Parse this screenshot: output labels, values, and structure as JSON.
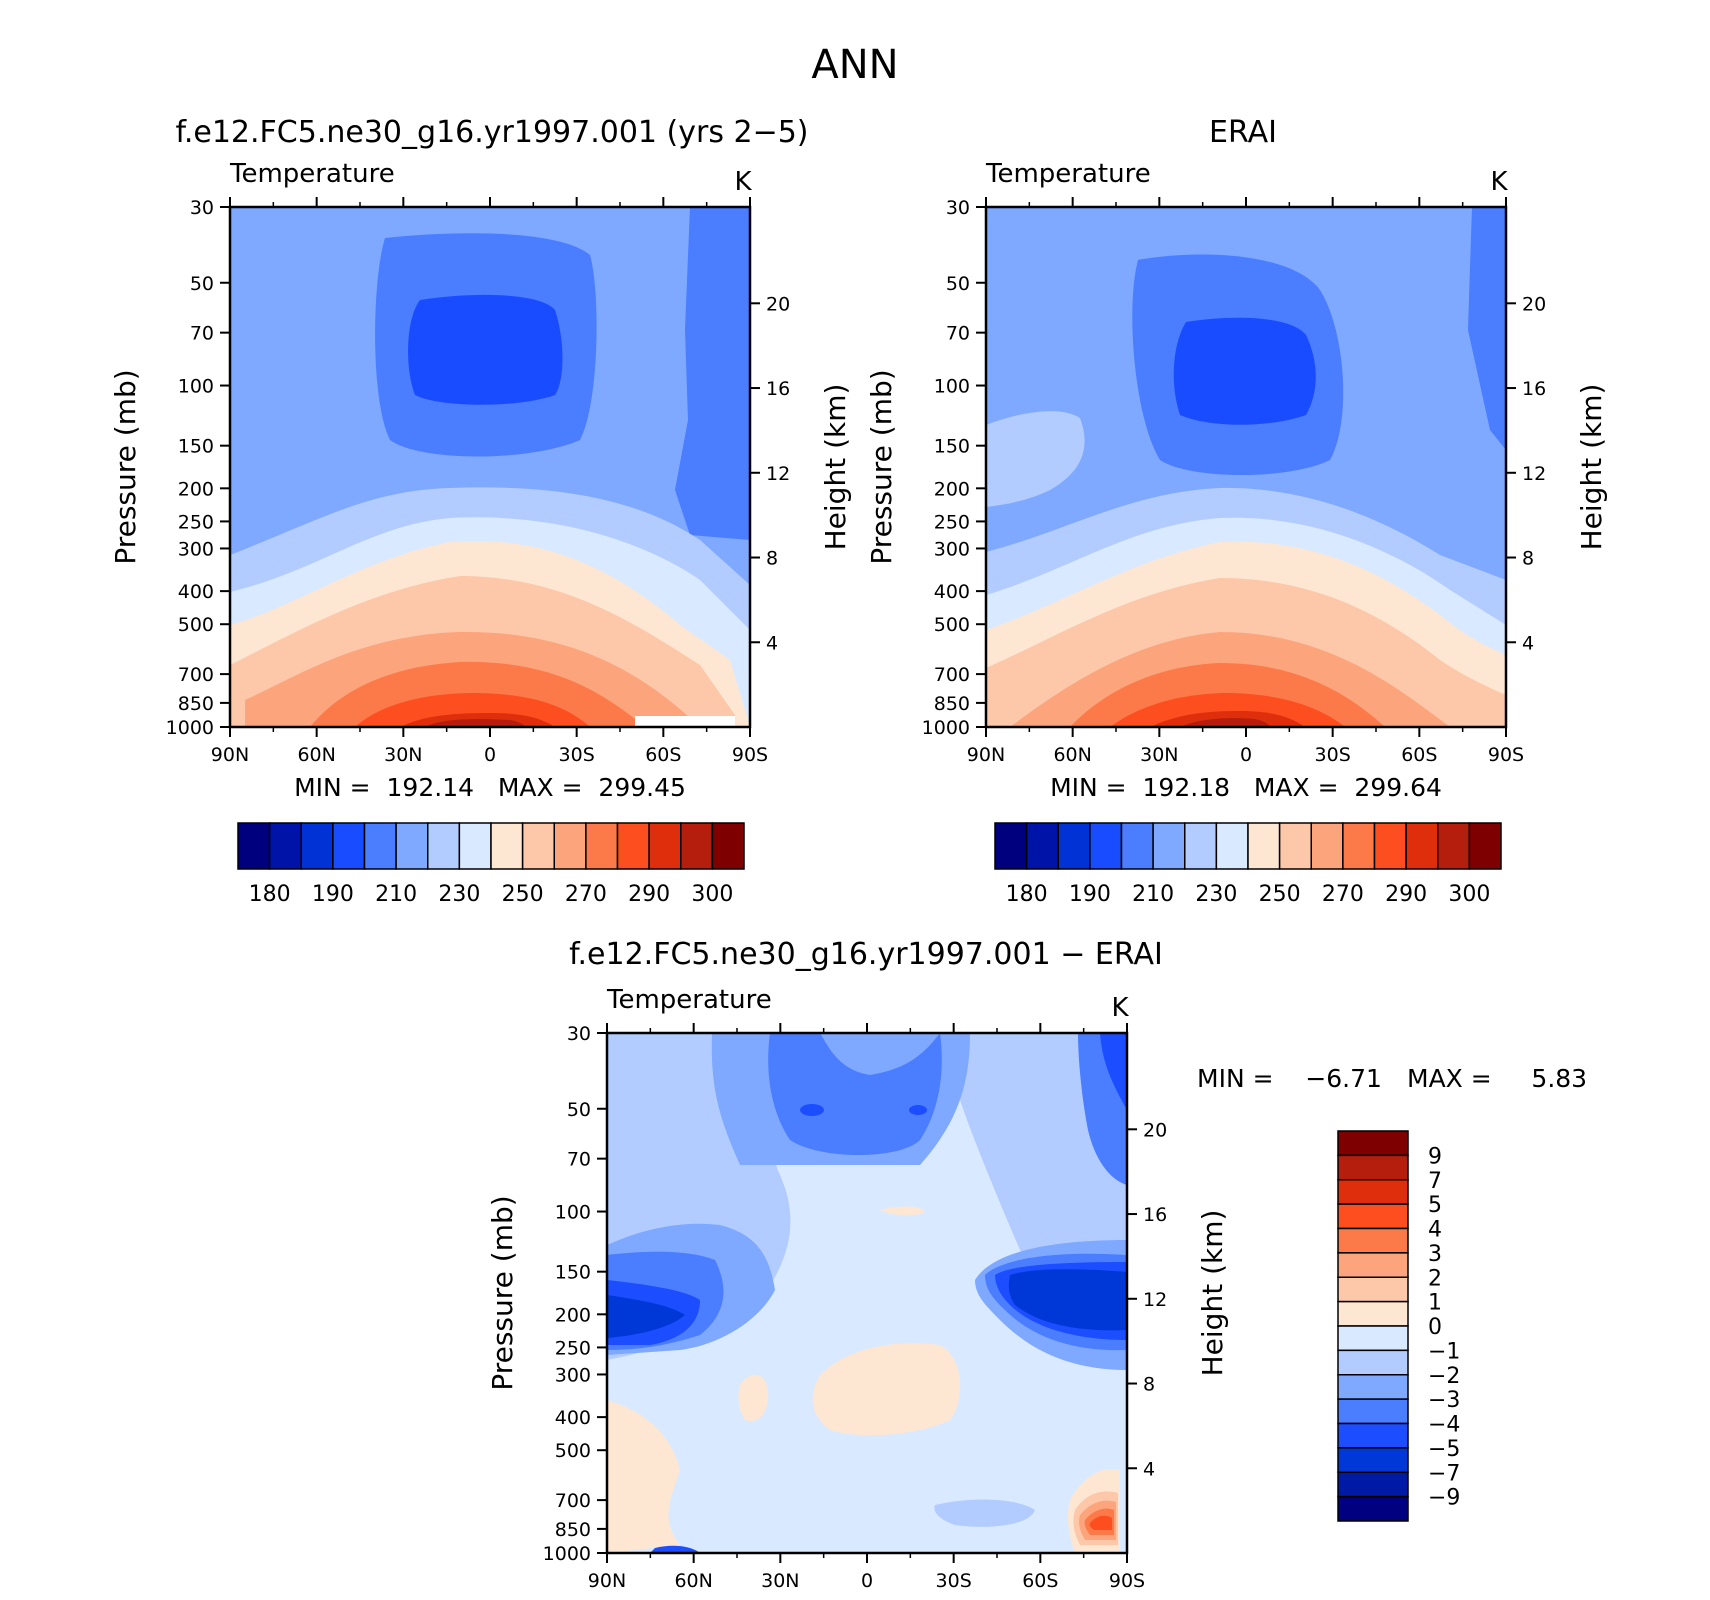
{
  "figure_title": "ANN",
  "colors": {
    "abs_palette": [
      "#00007f",
      "#0013a8",
      "#0032d6",
      "#1a4cff",
      "#4a7dff",
      "#7fa8ff",
      "#b3ccff",
      "#d9e9ff",
      "#fee7d2",
      "#fdc8aa",
      "#fca57c",
      "#fc7a4a",
      "#fc4e1f",
      "#de2e0c",
      "#b51d0c",
      "#7f0000"
    ],
    "diff_palette": [
      "#000080",
      "#001aa8",
      "#0038d8",
      "#1c4dff",
      "#4a7dff",
      "#7fa8ff",
      "#b3ccff",
      "#d9e9ff",
      "#fee7d2",
      "#fdc8aa",
      "#fca57c",
      "#fc7a4a",
      "#fc4e1f",
      "#de2e0c",
      "#b51d0c",
      "#7f0000"
    ]
  },
  "panels": [
    {
      "id": "model",
      "title": "f.e12.FC5.ne30_g16.yr1997.001 (yrs 2−5)",
      "variable": "Temperature",
      "units": "K",
      "stats": "MIN =  192.14   MAX =  299.45"
    },
    {
      "id": "obs",
      "title": "ERAI",
      "variable": "Temperature",
      "units": "K",
      "stats": "MIN =  192.18   MAX =  299.64"
    },
    {
      "id": "diff",
      "title": "f.e12.FC5.ne30_g16.yr1997.001 − ERAI",
      "variable": "Temperature",
      "units": "K",
      "stats_min": "MIN =    −6.71",
      "stats_max": "MAX =     5.83"
    }
  ],
  "axes": {
    "ylabel": "Pressure (mb)",
    "ylabel_right": "Height (km)",
    "pressure_ticks": [
      "30",
      "50",
      "70",
      "100",
      "150",
      "200",
      "250",
      "300",
      "400",
      "500",
      "700",
      "850",
      "1000"
    ],
    "height_ticks": [
      "20",
      "16",
      "12",
      "8",
      "4"
    ],
    "lat_ticks": [
      "90N",
      "60N",
      "30N",
      "0",
      "30S",
      "60S",
      "90S"
    ]
  },
  "colorbar_abs_labels": [
    "180",
    "190",
    "210",
    "230",
    "250",
    "270",
    "290",
    "300"
  ],
  "colorbar_diff_labels": [
    "9",
    "7",
    "5",
    "4",
    "3",
    "2",
    "1",
    "0",
    "−1",
    "−2",
    "−3",
    "−4",
    "−5",
    "−7",
    "−9"
  ],
  "chart_data": [
    {
      "type": "heatmap",
      "title": "f.e12.FC5.ne30_g16.yr1997.001 (yrs 2−5)",
      "subtitle": "Temperature",
      "units": "K",
      "xlabel": "",
      "ylabel": "Pressure (mb)",
      "y2label": "Height (km)",
      "x": [
        "90N",
        "60N",
        "30N",
        "0",
        "30S",
        "60S",
        "90S"
      ],
      "x_deg": [
        90,
        60,
        30,
        0,
        -30,
        -60,
        -90
      ],
      "y_pressure_mb": [
        30,
        50,
        70,
        100,
        150,
        200,
        250,
        300,
        400,
        500,
        700,
        850,
        1000
      ],
      "y2_height_km": [
        20,
        16,
        12,
        8,
        4
      ],
      "contour_levels": [
        180,
        185,
        190,
        200,
        210,
        220,
        230,
        240,
        250,
        260,
        270,
        280,
        290,
        295,
        300
      ],
      "min": 192.14,
      "max": 299.45
    },
    {
      "type": "heatmap",
      "title": "ERAI",
      "subtitle": "Temperature",
      "units": "K",
      "xlabel": "",
      "ylabel": "Pressure (mb)",
      "y2label": "Height (km)",
      "x": [
        "90N",
        "60N",
        "30N",
        "0",
        "30S",
        "60S",
        "90S"
      ],
      "x_deg": [
        90,
        60,
        30,
        0,
        -30,
        -60,
        -90
      ],
      "y_pressure_mb": [
        30,
        50,
        70,
        100,
        150,
        200,
        250,
        300,
        400,
        500,
        700,
        850,
        1000
      ],
      "y2_height_km": [
        20,
        16,
        12,
        8,
        4
      ],
      "contour_levels": [
        180,
        185,
        190,
        200,
        210,
        220,
        230,
        240,
        250,
        260,
        270,
        280,
        290,
        295,
        300
      ],
      "min": 192.18,
      "max": 299.64
    },
    {
      "type": "heatmap",
      "title": "f.e12.FC5.ne30_g16.yr1997.001 − ERAI",
      "subtitle": "Temperature",
      "units": "K",
      "xlabel": "",
      "ylabel": "Pressure (mb)",
      "y2label": "Height (km)",
      "x": [
        "90N",
        "60N",
        "30N",
        "0",
        "30S",
        "60S",
        "90S"
      ],
      "x_deg": [
        90,
        60,
        30,
        0,
        -30,
        -60,
        -90
      ],
      "y_pressure_mb": [
        30,
        50,
        70,
        100,
        150,
        200,
        250,
        300,
        400,
        500,
        700,
        850,
        1000
      ],
      "y2_height_km": [
        20,
        16,
        12,
        8,
        4
      ],
      "contour_levels": [
        -9,
        -7,
        -5,
        -4,
        -3,
        -2,
        -1,
        0,
        1,
        2,
        3,
        4,
        5,
        7,
        9
      ],
      "min": -6.71,
      "max": 5.83
    }
  ]
}
